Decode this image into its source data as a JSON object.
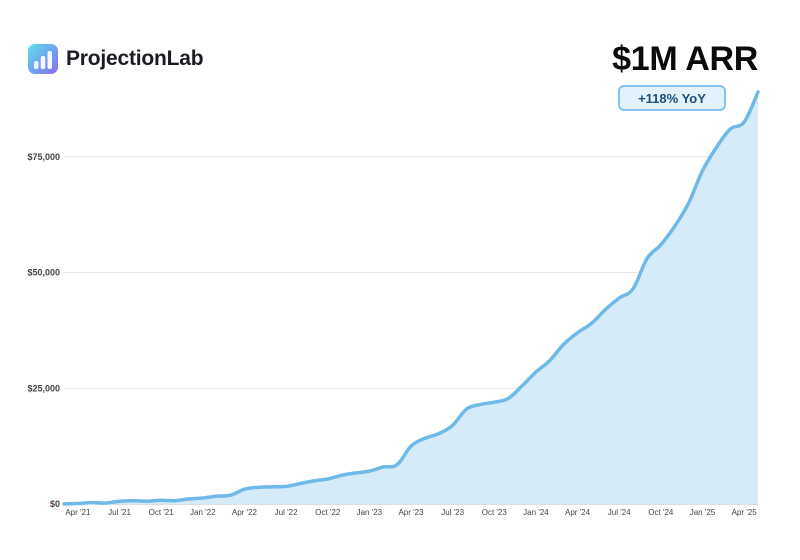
{
  "brand": {
    "name": "ProjectionLab",
    "logo_icon": "bar-chart-icon",
    "logo_colors": [
      "#5ee0ea",
      "#6da7ef",
      "#8b6cf0"
    ]
  },
  "headline": "$1M ARR",
  "badge": "+118% YoY",
  "colors": {
    "line": "#6fb9e8",
    "area": "#d6ebf9",
    "grid": "#e6e6e6",
    "badge_border": "#86c3ec",
    "badge_fill": "#e2f1fb",
    "badge_text": "#1d4f7a"
  },
  "chart_data": {
    "type": "area",
    "title": "",
    "xlabel": "",
    "ylabel": "",
    "ylim": [
      0,
      89000
    ],
    "y_ticks": [
      {
        "value": 0,
        "label": "$0"
      },
      {
        "value": 25000,
        "label": "$25,000"
      },
      {
        "value": 50000,
        "label": "$50,000"
      },
      {
        "value": 75000,
        "label": "$75,000"
      }
    ],
    "x_ticks": [
      "Apr '21",
      "Jul '21",
      "Oct '21",
      "Jan '22",
      "Apr '22",
      "Jul '22",
      "Oct '22",
      "Jan '23",
      "Apr '23",
      "Jul '23",
      "Oct '23",
      "Jan '24",
      "Apr '24",
      "Jul '24",
      "Oct '24",
      "Jan '25",
      "Apr '25"
    ],
    "grid": true,
    "legend": "none",
    "series": [
      {
        "x": [
          "2021-03",
          "2021-04",
          "2021-05",
          "2021-06",
          "2021-07",
          "2021-08",
          "2021-09",
          "2021-10",
          "2021-11",
          "2021-12",
          "2022-01",
          "2022-02",
          "2022-03",
          "2022-04",
          "2022-05",
          "2022-06",
          "2022-07",
          "2022-08",
          "2022-09",
          "2022-10",
          "2022-11",
          "2022-12",
          "2023-01",
          "2023-02",
          "2023-03",
          "2023-04",
          "2023-05",
          "2023-06",
          "2023-07",
          "2023-08",
          "2023-09",
          "2023-10",
          "2023-11",
          "2023-12",
          "2024-01",
          "2024-02",
          "2024-03",
          "2024-04",
          "2024-05",
          "2024-06",
          "2024-07",
          "2024-08",
          "2024-09",
          "2024-10",
          "2024-11",
          "2024-12",
          "2025-01",
          "2025-02",
          "2025-03",
          "2025-04",
          "2025-05"
        ],
        "values": [
          0,
          100,
          300,
          200,
          600,
          700,
          600,
          800,
          700,
          1100,
          1300,
          1700,
          1900,
          3200,
          3600,
          3700,
          3800,
          4400,
          5000,
          5400,
          6200,
          6700,
          7100,
          8000,
          8500,
          12500,
          14200,
          15200,
          17000,
          20500,
          21500,
          22000,
          22800,
          25500,
          28500,
          31000,
          34500,
          37000,
          39000,
          42000,
          44500,
          46500,
          53000,
          56000,
          60000,
          65000,
          72000,
          77000,
          81000,
          82500,
          89000
        ]
      }
    ]
  }
}
